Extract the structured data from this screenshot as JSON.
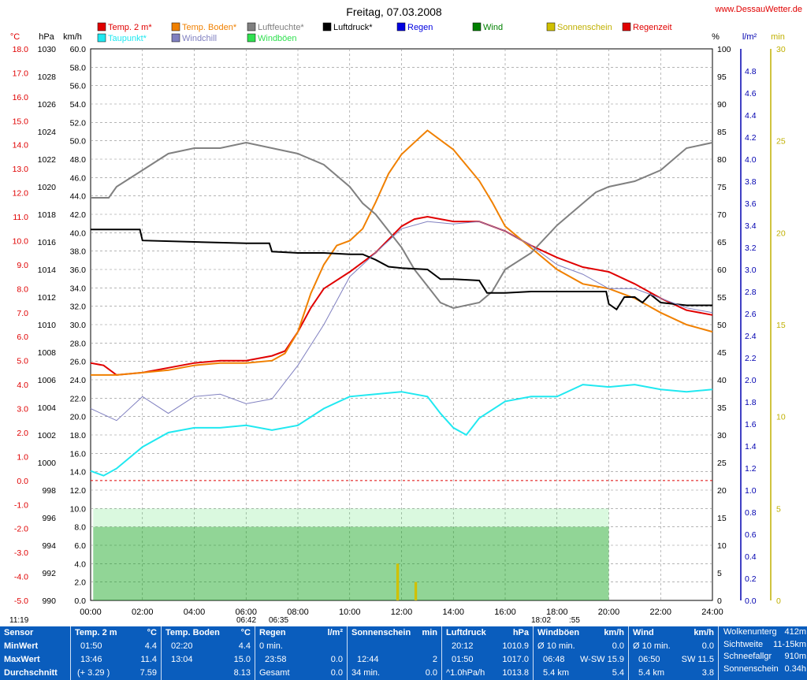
{
  "title": "Freitag, 07.03.2008",
  "site": "www.DessauWetter.de",
  "axis_units": {
    "temp": "°C",
    "pressure": "hPa",
    "speed": "km/h",
    "humidity": "%",
    "rain": "l/m²",
    "minutes": "min"
  },
  "legend": [
    {
      "label": "Temp. 2 m*",
      "color": "#e00000"
    },
    {
      "label": "Temp. Boden*",
      "color": "#f08000"
    },
    {
      "label": "Luftfeuchte*",
      "color": "#808080"
    },
    {
      "label": "Luftdruck*",
      "color": "#000000"
    },
    {
      "label": "Regen",
      "color": "#0000e0"
    },
    {
      "label": "Wind",
      "color": "#008000"
    },
    {
      "label": "Sonnenschein",
      "color": "#d0c000"
    },
    {
      "label": "Regenzeit",
      "color": "#e00000"
    },
    {
      "label": "Taupunkt*",
      "color": "#20e8f0"
    },
    {
      "label": "Windchill",
      "color": "#8080c0"
    },
    {
      "label": "Windböen",
      "color": "#30e050"
    }
  ],
  "sun_markers": {
    "left_time": "11:19",
    "rise_a": "06:42",
    "rise_b": "06:35",
    "set_a": "18:02",
    "set_b": ":55"
  },
  "chart_data": {
    "type": "line",
    "title": "Freitag, 07.03.2008",
    "x_range_hours": [
      0,
      24
    ],
    "x_ticks": [
      "00:00",
      "02:00",
      "04:00",
      "06:00",
      "08:00",
      "10:00",
      "12:00",
      "14:00",
      "16:00",
      "18:00",
      "20:00",
      "22:00",
      "24:00"
    ],
    "y_axes": {
      "temp_c": {
        "range": [
          -5,
          18
        ],
        "ticks": [
          "18.0",
          "17.0",
          "16.0",
          "15.0",
          "14.0",
          "13.0",
          "12.0",
          "11.0",
          "10.0",
          "9.0",
          "8.0",
          "7.0",
          "6.0",
          "5.0",
          "4.0",
          "3.0",
          "2.0",
          "1.0",
          "0.0",
          "-1.0",
          "-2.0",
          "-3.0",
          "-4.0",
          "-5.0"
        ]
      },
      "pressure_hpa": {
        "range": [
          990,
          1030
        ],
        "ticks": [
          "1030",
          "1028",
          "1026",
          "1024",
          "1022",
          "1020",
          "1018",
          "1016",
          "1014",
          "1012",
          "1010",
          "1008",
          "1006",
          "1004",
          "1002",
          "1000",
          "998",
          "996",
          "994",
          "992",
          "990"
        ]
      },
      "speed_kmh": {
        "range": [
          0,
          60
        ],
        "ticks": [
          "60.0",
          "58.0",
          "56.0",
          "54.0",
          "52.0",
          "50.0",
          "48.0",
          "46.0",
          "44.0",
          "42.0",
          "40.0",
          "38.0",
          "36.0",
          "34.0",
          "32.0",
          "30.0",
          "28.0",
          "26.0",
          "24.0",
          "22.0",
          "20.0",
          "18.0",
          "16.0",
          "14.0",
          "12.0",
          "10.0",
          "8.0",
          "6.0",
          "4.0",
          "2.0",
          "0.0"
        ]
      },
      "humidity_pct": {
        "range": [
          0,
          100
        ],
        "ticks": [
          "100",
          "95",
          "90",
          "85",
          "80",
          "75",
          "70",
          "65",
          "60",
          "55",
          "50",
          "45",
          "40",
          "35",
          "30",
          "25",
          "20",
          "15",
          "10",
          "5",
          "0"
        ]
      },
      "rain_lm2": {
        "range": [
          0,
          5
        ],
        "ticks": [
          "4.8",
          "4.6",
          "4.4",
          "4.2",
          "4.0",
          "3.8",
          "3.6",
          "3.4",
          "3.2",
          "3.0",
          "2.8",
          "2.6",
          "2.4",
          "2.2",
          "2.0",
          "1.8",
          "1.6",
          "1.4",
          "1.2",
          "1.0",
          "0.8",
          "0.6",
          "0.4",
          "0.2",
          "0.0"
        ]
      },
      "minutes": {
        "range": [
          0,
          30
        ],
        "ticks": [
          "30",
          "25",
          "20",
          "15",
          "10",
          "5",
          "0"
        ]
      }
    },
    "series": [
      {
        "name": "Temp. 2 m*",
        "axis": "temp_c",
        "color": "#e00000",
        "x": [
          0,
          0.5,
          1,
          2,
          3,
          4,
          5,
          6,
          7,
          7.5,
          8,
          8.5,
          9,
          10,
          11,
          12,
          12.5,
          13,
          14,
          15,
          16,
          17,
          18,
          19,
          20,
          21,
          22,
          23,
          24
        ],
        "y": [
          4.9,
          4.8,
          4.4,
          4.5,
          4.7,
          4.9,
          5.0,
          5.0,
          5.2,
          5.4,
          6.2,
          7.2,
          8.0,
          8.7,
          9.5,
          10.6,
          10.9,
          11.0,
          10.8,
          10.8,
          10.4,
          9.8,
          9.3,
          8.9,
          8.7,
          8.2,
          7.6,
          7.1,
          6.9
        ]
      },
      {
        "name": "Temp. Boden*",
        "axis": "temp_c",
        "color": "#f08000",
        "x": [
          0,
          1,
          2,
          3,
          4,
          5,
          6,
          7,
          7.5,
          8,
          8.5,
          9,
          9.5,
          10,
          10.5,
          11,
          11.5,
          12,
          12.5,
          13,
          13.5,
          14,
          15,
          15.5,
          16,
          17,
          18,
          19,
          20,
          21,
          22,
          23,
          24
        ],
        "y": [
          4.4,
          4.4,
          4.5,
          4.6,
          4.8,
          4.9,
          4.9,
          5.0,
          5.3,
          6.2,
          7.8,
          9.0,
          9.8,
          10.0,
          10.5,
          11.6,
          12.8,
          13.6,
          14.1,
          14.6,
          14.2,
          13.8,
          12.5,
          11.6,
          10.6,
          9.7,
          8.8,
          8.2,
          8.0,
          7.6,
          7.0,
          6.5,
          6.2
        ]
      },
      {
        "name": "Luftfeuchte*",
        "axis": "humidity_pct",
        "color": "#808080",
        "x": [
          0,
          0.7,
          1,
          2,
          3,
          4,
          5,
          6,
          7,
          8,
          9,
          10,
          10.5,
          11,
          11.5,
          12,
          12.5,
          13,
          13.5,
          14,
          15,
          15.5,
          16,
          17,
          18,
          19,
          19.5,
          20,
          21,
          22,
          23,
          24
        ],
        "y": [
          73,
          73,
          75,
          78,
          81,
          82,
          82,
          83,
          82,
          81,
          79,
          75,
          72,
          70,
          67,
          64,
          60,
          57,
          54,
          53,
          54,
          56,
          60,
          63,
          68,
          72,
          74,
          75,
          76,
          78,
          82,
          83
        ]
      },
      {
        "name": "Luftdruck*",
        "axis": "pressure_hpa",
        "color": "#000000",
        "x": [
          0,
          1.9,
          2,
          4,
          6,
          6.9,
          7,
          8,
          9,
          10,
          10.5,
          11,
          11.5,
          12,
          13,
          13.5,
          14,
          15,
          15.3,
          16,
          17,
          18,
          19,
          19.9,
          20,
          20.3,
          20.6,
          21,
          21.3,
          21.6,
          22,
          23,
          24
        ],
        "y": [
          1016.9,
          1016.9,
          1016.1,
          1016.0,
          1015.9,
          1015.9,
          1015.3,
          1015.2,
          1015.2,
          1015.1,
          1015.1,
          1014.7,
          1014.2,
          1014.1,
          1014.0,
          1013.3,
          1013.3,
          1013.2,
          1012.3,
          1012.3,
          1012.4,
          1012.4,
          1012.4,
          1012.4,
          1011.5,
          1011.1,
          1012.0,
          1012.0,
          1011.6,
          1012.2,
          1011.6,
          1011.4,
          1011.4
        ]
      },
      {
        "name": "Taupunkt*",
        "axis": "temp_c",
        "color": "#20e8f0",
        "x": [
          0,
          0.5,
          1,
          2,
          3,
          4,
          5,
          6,
          7,
          8,
          9,
          10,
          11,
          12,
          13,
          13.5,
          14,
          14.5,
          15,
          16,
          17,
          18,
          19,
          20,
          21,
          22,
          23,
          24
        ],
        "y": [
          0.4,
          0.2,
          0.5,
          1.4,
          2.0,
          2.2,
          2.2,
          2.3,
          2.1,
          2.3,
          3.0,
          3.5,
          3.6,
          3.7,
          3.5,
          2.8,
          2.2,
          1.9,
          2.6,
          3.3,
          3.5,
          3.5,
          4.0,
          3.9,
          4.0,
          3.8,
          3.7,
          3.8
        ]
      },
      {
        "name": "Windchill",
        "axis": "temp_c",
        "color": "#8080c0",
        "x": [
          0,
          1,
          2,
          3,
          4,
          5,
          6,
          7,
          8,
          9,
          10,
          11,
          12,
          13,
          14,
          15,
          16,
          17,
          18,
          19,
          20,
          21,
          22,
          23,
          24
        ],
        "y": [
          3.0,
          2.5,
          3.5,
          2.8,
          3.5,
          3.6,
          3.2,
          3.4,
          4.8,
          6.5,
          8.5,
          9.5,
          10.5,
          10.8,
          10.7,
          10.8,
          10.4,
          9.8,
          9.0,
          8.6,
          8.0,
          8.0,
          7.6,
          7.2,
          7.0
        ]
      },
      {
        "name": "Wind",
        "axis": "speed_kmh",
        "color": "#008000",
        "x": [
          0.1,
          20
        ],
        "y": [
          8,
          8
        ]
      },
      {
        "name": "Windböen",
        "axis": "speed_kmh",
        "color": "#30e050",
        "x": [
          0.1,
          20
        ],
        "y": [
          10,
          10
        ]
      },
      {
        "name": "Sonnenschein",
        "axis": "minutes",
        "color": "#d0c000",
        "x": [
          11.8,
          11.9,
          12.5,
          12.6
        ],
        "y": [
          2,
          2,
          1,
          1
        ]
      }
    ],
    "zero_line_c": 0.0
  },
  "table": {
    "sensor": {
      "header": "Sensor",
      "rows": [
        "MinWert",
        "MaxWert",
        "Durchschnitt"
      ]
    },
    "temp2m": {
      "header": "Temp. 2 m",
      "unit": "°C",
      "rows": [
        [
          "01:50",
          "4.4"
        ],
        [
          "13:46",
          "11.4"
        ],
        [
          "(+ 3.29 )",
          "7.59"
        ]
      ]
    },
    "tempboden": {
      "header": "Temp. Boden",
      "unit": "°C",
      "rows": [
        [
          "02:20",
          "4.4"
        ],
        [
          "13:04",
          "15.0"
        ],
        [
          "",
          "8.13"
        ]
      ]
    },
    "regen": {
      "header": "Regen",
      "unit": "l/m²",
      "rows": [
        [
          "0 min.",
          ""
        ],
        [
          "23:58",
          "0.0"
        ],
        [
          "Gesamt",
          "0.0"
        ]
      ]
    },
    "sonne": {
      "header": "Sonnenschein",
      "unit": "min",
      "rows": [
        [
          "",
          ""
        ],
        [
          "12:44",
          "2"
        ],
        [
          "34 min.",
          "0.0"
        ]
      ]
    },
    "druck": {
      "header": "Luftdruck",
      "unit": "hPa",
      "rows": [
        [
          "20:12",
          "1010.9"
        ],
        [
          "01:50",
          "1017.0"
        ],
        [
          "^1.0hPa/h",
          "1013.8"
        ]
      ]
    },
    "boeen": {
      "header": "Windböen",
      "unit": "km/h",
      "rows": [
        [
          "Ø 10 min.",
          "0.0"
        ],
        [
          "06:48",
          "W-SW 15.9"
        ],
        [
          "5.4 km",
          "5.4"
        ]
      ]
    },
    "wind": {
      "header": "Wind",
      "unit": "km/h",
      "rows": [
        [
          "Ø 10 min.",
          "0.0"
        ],
        [
          "06:50",
          "SW 11.5"
        ],
        [
          "5.4 km",
          "3.8"
        ]
      ]
    },
    "extra": {
      "rows": [
        [
          "Wolkenunterg",
          "412m"
        ],
        [
          "Sichtweite",
          "11-15km"
        ],
        [
          "Schneefallgr",
          "910m"
        ],
        [
          "Sonnenschein",
          "0.34h"
        ]
      ]
    }
  }
}
